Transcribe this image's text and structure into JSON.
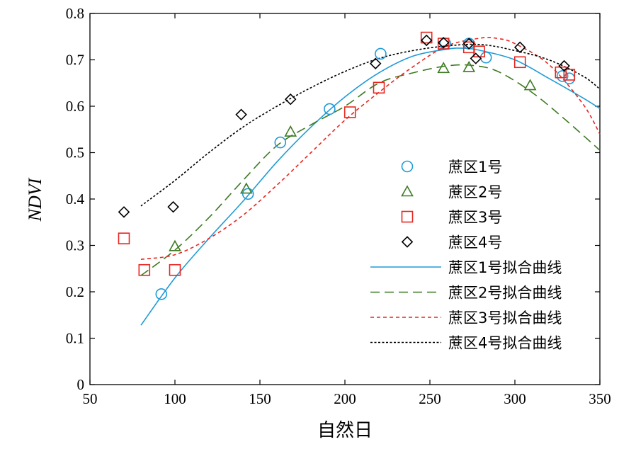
{
  "chart_data": {
    "type": "scatter",
    "title": "",
    "xlabel": "自然日",
    "ylabel": "NDVI",
    "xlim": [
      50,
      350
    ],
    "ylim": [
      0,
      0.8
    ],
    "xticks": [
      50,
      100,
      150,
      200,
      250,
      300,
      350
    ],
    "yticks": [
      0,
      0.1,
      0.2,
      0.3,
      0.4,
      0.5,
      0.6,
      0.7,
      0.8
    ],
    "grid": false,
    "legend_position": "right",
    "series": [
      {
        "name": "蔗区1号",
        "kind": "scatter",
        "marker": "circle",
        "color": "#1f9bd7",
        "points": [
          [
            92,
            0.195
          ],
          [
            221,
            0.713
          ],
          [
            259,
            0.735
          ],
          [
            273,
            0.735
          ],
          [
            283,
            0.705
          ],
          [
            328,
            0.665
          ],
          [
            332,
            0.66
          ],
          [
            162,
            0.522
          ],
          [
            191,
            0.594
          ],
          [
            143,
            0.411
          ]
        ]
      },
      {
        "name": "蔗区2号",
        "kind": "scatter",
        "marker": "triangle",
        "color": "#3d7a22",
        "points": [
          [
            100,
            0.298
          ],
          [
            142,
            0.422
          ],
          [
            168,
            0.545
          ],
          [
            258,
            0.682
          ],
          [
            273,
            0.684
          ],
          [
            309,
            0.645
          ]
        ]
      },
      {
        "name": "蔗区3号",
        "kind": "scatter",
        "marker": "square",
        "color": "#e8251f",
        "points": [
          [
            70,
            0.315
          ],
          [
            82,
            0.247
          ],
          [
            100,
            0.247
          ],
          [
            203,
            0.587
          ],
          [
            220,
            0.64
          ],
          [
            248,
            0.748
          ],
          [
            258,
            0.735
          ],
          [
            273,
            0.727
          ],
          [
            279,
            0.718
          ],
          [
            303,
            0.695
          ],
          [
            327,
            0.673
          ],
          [
            332,
            0.668
          ]
        ]
      },
      {
        "name": "蔗区4号",
        "kind": "scatter",
        "marker": "diamond",
        "color": "#000000",
        "points": [
          [
            70,
            0.372
          ],
          [
            99,
            0.383
          ],
          [
            139,
            0.582
          ],
          [
            168,
            0.615
          ],
          [
            218,
            0.692
          ],
          [
            248,
            0.742
          ],
          [
            258,
            0.737
          ],
          [
            273,
            0.735
          ],
          [
            277,
            0.703
          ],
          [
            303,
            0.727
          ],
          [
            329,
            0.687
          ]
        ]
      },
      {
        "name": "蔗区1号拟合曲线",
        "kind": "line",
        "dash": "solid",
        "color": "#1f9bd7",
        "x": [
          80,
          100,
          120,
          140,
          160,
          180,
          200,
          220,
          240,
          260,
          270,
          280,
          300,
          320,
          340,
          350
        ],
        "y": [
          0.128,
          0.23,
          0.315,
          0.395,
          0.48,
          0.555,
          0.62,
          0.672,
          0.708,
          0.723,
          0.725,
          0.72,
          0.7,
          0.66,
          0.618,
          0.595
        ]
      },
      {
        "name": "蔗区2号拟合曲线",
        "kind": "line",
        "dash": "long",
        "color": "#3d7a22",
        "x": [
          80,
          100,
          120,
          140,
          160,
          180,
          200,
          220,
          240,
          260,
          275,
          290,
          310,
          330,
          350
        ],
        "y": [
          0.235,
          0.29,
          0.36,
          0.44,
          0.515,
          0.56,
          0.6,
          0.65,
          0.672,
          0.687,
          0.688,
          0.675,
          0.63,
          0.57,
          0.505
        ]
      },
      {
        "name": "蔗区3号拟合曲线",
        "kind": "line",
        "dash": "short",
        "color": "#e8251f",
        "x": [
          80,
          100,
          120,
          140,
          160,
          180,
          200,
          220,
          240,
          260,
          280,
          290,
          300,
          320,
          340,
          350
        ],
        "y": [
          0.27,
          0.28,
          0.315,
          0.365,
          0.43,
          0.5,
          0.57,
          0.63,
          0.685,
          0.73,
          0.747,
          0.746,
          0.735,
          0.69,
          0.605,
          0.54
        ]
      },
      {
        "name": "蔗区4号拟合曲线",
        "kind": "line",
        "dash": "dotted",
        "color": "#000000",
        "x": [
          80,
          100,
          120,
          140,
          160,
          180,
          200,
          220,
          240,
          260,
          280,
          300,
          320,
          340,
          350
        ],
        "y": [
          0.385,
          0.44,
          0.5,
          0.555,
          0.6,
          0.64,
          0.675,
          0.703,
          0.72,
          0.73,
          0.733,
          0.72,
          0.7,
          0.665,
          0.637
        ]
      }
    ]
  }
}
